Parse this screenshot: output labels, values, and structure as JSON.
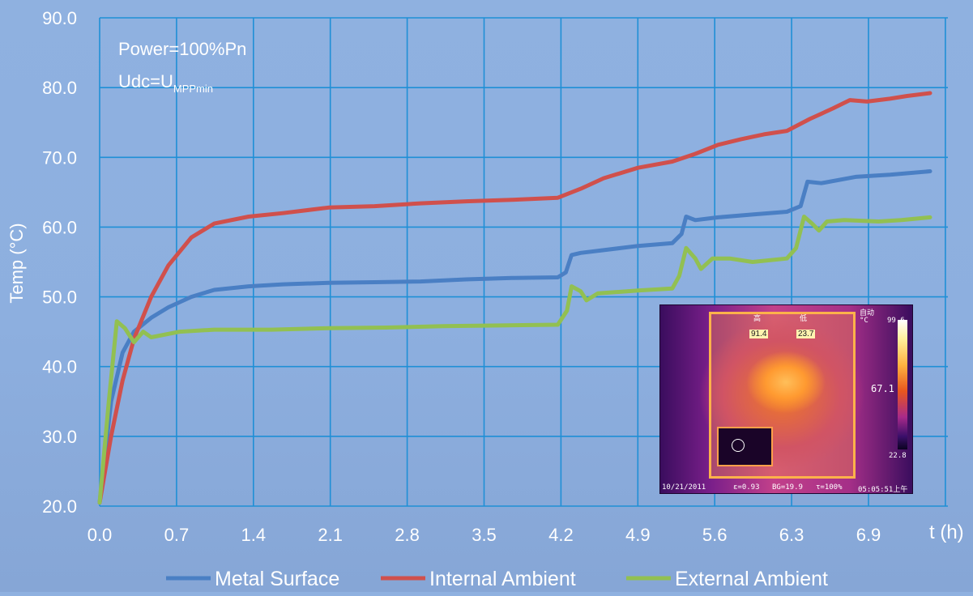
{
  "chart_data": {
    "type": "line",
    "ylabel": "Temp (°C)",
    "xlabel": "t (h)",
    "ylim": [
      20,
      90
    ],
    "xlim": [
      0,
      7.25
    ],
    "yticks": [
      "20.0",
      "30.0",
      "40.0",
      "50.0",
      "60.0",
      "70.0",
      "80.0",
      "90.0"
    ],
    "xticks": [
      "0.0",
      "0.7",
      "1.4",
      "2.1",
      "2.8",
      "3.5",
      "4.2",
      "4.9",
      "5.6",
      "6.3",
      "6.9"
    ],
    "grid": true,
    "legend": "bottom",
    "annotations": {
      "power": "Power=100%Pn",
      "udc_main": "Udc=U",
      "udc_sub": "MPPmin"
    },
    "series": [
      {
        "name": "Metal Surface",
        "color": "#4a7fc4",
        "points": [
          [
            0.0,
            20.5
          ],
          [
            0.1,
            35
          ],
          [
            0.2,
            42
          ],
          [
            0.3,
            45
          ],
          [
            0.45,
            47
          ],
          [
            0.6,
            48.5
          ],
          [
            0.8,
            50
          ],
          [
            1.0,
            51
          ],
          [
            1.3,
            51.5
          ],
          [
            1.6,
            51.8
          ],
          [
            2.0,
            52
          ],
          [
            2.4,
            52.1
          ],
          [
            2.8,
            52.2
          ],
          [
            3.2,
            52.5
          ],
          [
            3.6,
            52.7
          ],
          [
            4.0,
            52.8
          ],
          [
            4.07,
            53.5
          ],
          [
            4.12,
            56
          ],
          [
            4.2,
            56.3
          ],
          [
            4.4,
            56.7
          ],
          [
            4.7,
            57.3
          ],
          [
            5.0,
            57.7
          ],
          [
            5.08,
            59
          ],
          [
            5.12,
            61.5
          ],
          [
            5.2,
            61
          ],
          [
            5.4,
            61.4
          ],
          [
            5.7,
            61.8
          ],
          [
            6.0,
            62.2
          ],
          [
            6.12,
            63
          ],
          [
            6.18,
            66.5
          ],
          [
            6.3,
            66.3
          ],
          [
            6.6,
            67.2
          ],
          [
            6.9,
            67.5
          ],
          [
            7.25,
            68
          ]
        ]
      },
      {
        "name": "Internal Ambient",
        "color": "#d0504c",
        "points": [
          [
            0.0,
            20.5
          ],
          [
            0.1,
            30
          ],
          [
            0.2,
            38
          ],
          [
            0.3,
            44
          ],
          [
            0.45,
            50
          ],
          [
            0.6,
            54.5
          ],
          [
            0.8,
            58.5
          ],
          [
            1.0,
            60.5
          ],
          [
            1.3,
            61.5
          ],
          [
            1.6,
            62
          ],
          [
            2.0,
            62.8
          ],
          [
            2.4,
            63
          ],
          [
            2.8,
            63.4
          ],
          [
            3.2,
            63.7
          ],
          [
            3.6,
            63.9
          ],
          [
            4.0,
            64.2
          ],
          [
            4.2,
            65.5
          ],
          [
            4.4,
            67
          ],
          [
            4.7,
            68.5
          ],
          [
            5.0,
            69.4
          ],
          [
            5.2,
            70.5
          ],
          [
            5.4,
            71.8
          ],
          [
            5.6,
            72.6
          ],
          [
            5.8,
            73.3
          ],
          [
            6.0,
            73.8
          ],
          [
            6.2,
            75.5
          ],
          [
            6.4,
            77
          ],
          [
            6.55,
            78.2
          ],
          [
            6.7,
            78
          ],
          [
            6.9,
            78.4
          ],
          [
            7.05,
            78.8
          ],
          [
            7.25,
            79.2
          ]
        ]
      },
      {
        "name": "External Ambient",
        "color": "#92c052",
        "points": [
          [
            0.0,
            20.5
          ],
          [
            0.08,
            35
          ],
          [
            0.15,
            46.5
          ],
          [
            0.22,
            45.5
          ],
          [
            0.3,
            43.5
          ],
          [
            0.38,
            45
          ],
          [
            0.45,
            44.2
          ],
          [
            0.7,
            45
          ],
          [
            1.0,
            45.3
          ],
          [
            1.5,
            45.3
          ],
          [
            2.0,
            45.5
          ],
          [
            2.5,
            45.6
          ],
          [
            3.0,
            45.8
          ],
          [
            3.5,
            45.9
          ],
          [
            4.0,
            46
          ],
          [
            4.08,
            48
          ],
          [
            4.12,
            51.5
          ],
          [
            4.2,
            50.8
          ],
          [
            4.25,
            49.5
          ],
          [
            4.35,
            50.5
          ],
          [
            4.7,
            50.9
          ],
          [
            5.0,
            51.2
          ],
          [
            5.06,
            53
          ],
          [
            5.12,
            57
          ],
          [
            5.2,
            55.5
          ],
          [
            5.25,
            54
          ],
          [
            5.35,
            55.5
          ],
          [
            5.5,
            55.5
          ],
          [
            5.7,
            55
          ],
          [
            6.0,
            55.5
          ],
          [
            6.08,
            57
          ],
          [
            6.15,
            61.5
          ],
          [
            6.22,
            60.5
          ],
          [
            6.28,
            59.5
          ],
          [
            6.35,
            60.8
          ],
          [
            6.5,
            61
          ],
          [
            6.8,
            60.8
          ],
          [
            7.0,
            61
          ],
          [
            7.25,
            61.4
          ]
        ]
      }
    ]
  },
  "inset": {
    "label_top_left": "高",
    "label_top_right": "低",
    "val_1": "91.4",
    "val_2": "23.7",
    "val_mid": "67.1",
    "scale_unit": "°C",
    "scale_top": "99.6",
    "scale_bottom": "22.8",
    "scale_mode": "自动",
    "footer_date": "10/21/2011",
    "footer_e": "ε=0.93",
    "footer_bg": "BG=19.9",
    "footer_tau": "τ=100%",
    "footer_time": "05:05:51上午"
  }
}
